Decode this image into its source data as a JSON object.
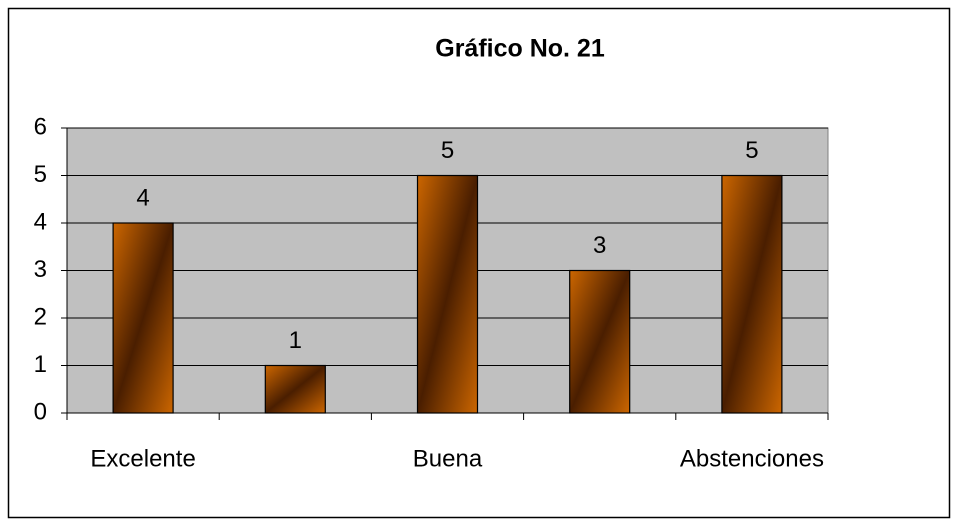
{
  "chart_data": {
    "type": "bar",
    "title": "Gráfico No. 21",
    "categories": [
      "Excelente",
      null,
      "Buena",
      null,
      "Abstenciones"
    ],
    "values": [
      4,
      1,
      5,
      3,
      5
    ],
    "color": "#cc6600",
    "ylim": [
      0,
      6
    ],
    "yticks": [
      0,
      1,
      2,
      3,
      4,
      5,
      6
    ],
    "grid": true
  }
}
